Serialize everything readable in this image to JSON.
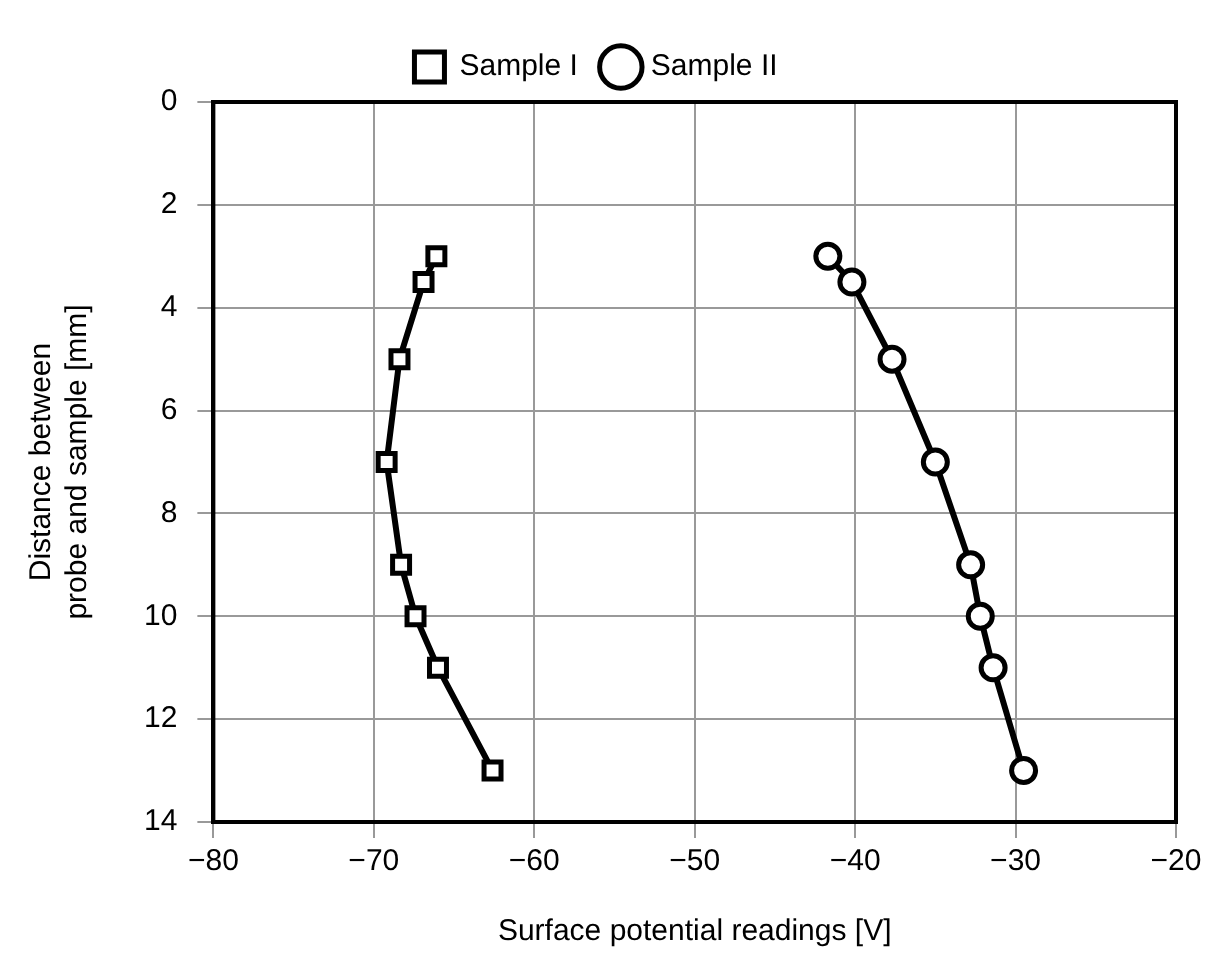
{
  "chart_data": {
    "type": "line",
    "xlabel": "Surface potential readings [V]",
    "ylabel": "Distance between\nprobe and sample [mm]",
    "xlim": [
      -80,
      -20
    ],
    "xticks": [
      {
        "value": -80,
        "label": "−80"
      },
      {
        "value": -70,
        "label": "−70"
      },
      {
        "value": -60,
        "label": "−60"
      },
      {
        "value": -50,
        "label": "−50"
      },
      {
        "value": -40,
        "label": "−40"
      },
      {
        "value": -30,
        "label": "−30"
      },
      {
        "value": -20,
        "label": "−20"
      }
    ],
    "ylim": [
      14,
      0
    ],
    "yticks": [
      0,
      2,
      4,
      6,
      8,
      10,
      12,
      14
    ],
    "grid": true,
    "legend": "top",
    "line_style": "solid",
    "series": [
      {
        "name": "Sample I",
        "color": "#000000",
        "marker": "square",
        "x": [
          -66.1,
          -66.9,
          -68.4,
          -69.2,
          -68.3,
          -67.4,
          -66,
          -62.6
        ],
        "values": [
          3,
          3.5,
          5,
          7,
          9,
          10,
          11,
          13
        ]
      },
      {
        "name": "Sample II",
        "color": "#000000",
        "marker": "circle",
        "x": [
          -41.7,
          -40.2,
          -37.7,
          -35,
          -32.8,
          -32.2,
          -31.4,
          -29.5
        ],
        "values": [
          3,
          3.5,
          5,
          7,
          9,
          10,
          11,
          13
        ]
      }
    ]
  }
}
